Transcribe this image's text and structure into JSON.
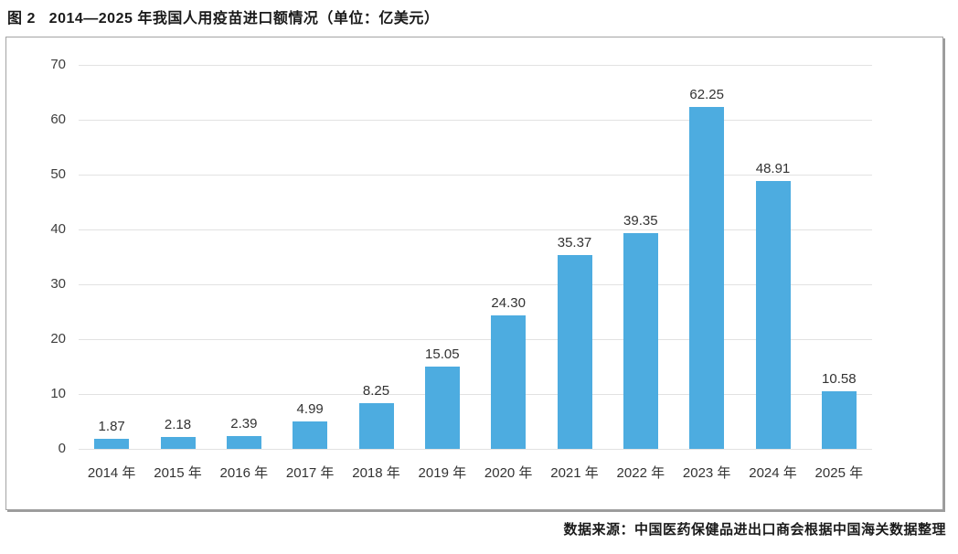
{
  "figure": {
    "title": "图 2   2014—2025 年我国人用疫苗进口额情况（单位：亿美元）",
    "source": "数据来源：中国医药保健品进出口商会根据中国海关数据整理"
  },
  "chart_data": {
    "type": "bar",
    "title": "2014—2025 年我国人用疫苗进口额情况",
    "unit": "亿美元",
    "categories": [
      "2014 年",
      "2015 年",
      "2016 年",
      "2017 年",
      "2018 年",
      "2019 年",
      "2020 年",
      "2021 年",
      "2022 年",
      "2023 年",
      "2024 年",
      "2025 年"
    ],
    "values": [
      1.87,
      2.18,
      2.39,
      4.99,
      8.25,
      15.05,
      24.3,
      35.37,
      39.35,
      62.25,
      48.91,
      10.58
    ],
    "value_labels": [
      "1.87",
      "2.18",
      "2.39",
      "4.99",
      "8.25",
      "15.05",
      "24.30",
      "35.37",
      "39.35",
      "62.25",
      "48.91",
      "10.58"
    ],
    "xlabel": "",
    "ylabel": "",
    "ylim": [
      0,
      70
    ],
    "yticks": [
      0,
      10,
      20,
      30,
      40,
      50,
      60,
      70
    ],
    "grid": true,
    "legend": "none",
    "bar_color": "#4dace0",
    "grid_color": "#e2e2e2",
    "source": "数据来源：中国医药保健品进出口商会根据中国海关数据整理"
  }
}
